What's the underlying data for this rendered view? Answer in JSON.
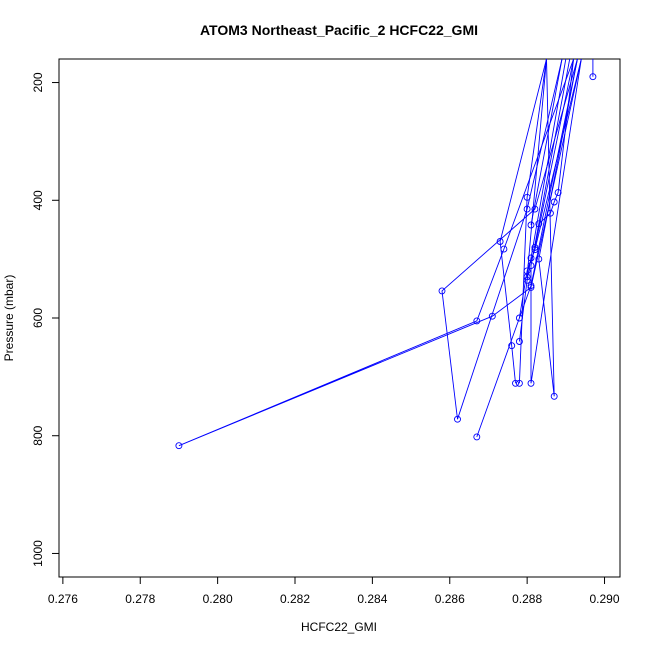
{
  "chart_data": {
    "type": "line",
    "title": "ATOM3 Northeast_Pacific_2 HCFC22_GMI",
    "xlabel": "HCFC22_GMI",
    "ylabel": "Pressure (mbar)",
    "xlim": [
      0.2759,
      0.2904
    ],
    "ylim": [
      1040,
      160
    ],
    "y_reversed": true,
    "grid": false,
    "legend": "none",
    "color": "#0000ff",
    "x_ticks": [
      "0.276",
      "0.278",
      "0.280",
      "0.282",
      "0.284",
      "0.286",
      "0.288",
      "0.290"
    ],
    "y_ticks": [
      "200",
      "400",
      "600",
      "800",
      "1000"
    ],
    "x_tick_values": [
      0.276,
      0.278,
      0.28,
      0.282,
      0.284,
      0.286,
      0.288,
      0.29
    ],
    "y_tick_values": [
      200,
      400,
      600,
      800,
      1000
    ],
    "series": [
      {
        "values": [
          [
            0.2885,
            160
          ],
          [
            0.2873,
            470
          ],
          [
            0.2876,
            647
          ],
          [
            0.2877,
            711
          ]
        ]
      },
      {
        "values": [
          [
            0.2885,
            160
          ],
          [
            0.288,
            395
          ],
          [
            0.2878,
            711
          ]
        ]
      },
      {
        "values": [
          [
            0.2893,
            160
          ],
          [
            0.2882,
            415
          ],
          [
            0.2858,
            554
          ],
          [
            0.2862,
            772
          ],
          [
            0.288,
            415
          ],
          [
            0.2889,
            160
          ]
        ]
      },
      {
        "values": [
          [
            0.2893,
            160
          ],
          [
            0.2883,
            500
          ],
          [
            0.2887,
            733
          ],
          [
            0.2885,
            160
          ]
        ]
      },
      {
        "values": [
          [
            0.2892,
            160
          ],
          [
            0.2874,
            483
          ],
          [
            0.2867,
            605
          ],
          [
            0.279,
            817
          ],
          [
            0.2871,
            597
          ],
          [
            0.2881,
            548
          ],
          [
            0.2894,
            160
          ]
        ]
      },
      {
        "values": [
          [
            0.2891,
            160
          ],
          [
            0.2881,
            511
          ],
          [
            0.2881,
            711
          ],
          [
            0.2894,
            160
          ]
        ]
      },
      {
        "values": [
          [
            0.2893,
            160
          ],
          [
            0.2881,
            545
          ],
          [
            0.2867,
            802
          ]
        ]
      },
      {
        "values": [
          [
            0.2892,
            160
          ],
          [
            0.2888,
            387
          ],
          [
            0.2887,
            403
          ],
          [
            0.2886,
            422
          ],
          [
            0.2883,
            440
          ]
        ]
      },
      {
        "values": [
          [
            0.289,
            160
          ],
          [
            0.2881,
            498
          ],
          [
            0.288,
            536
          ],
          [
            0.2878,
            640
          ]
        ]
      },
      {
        "values": [
          [
            0.2894,
            160
          ],
          [
            0.2882,
            484
          ],
          [
            0.288,
            520
          ],
          [
            0.2878,
            600
          ]
        ]
      },
      {
        "values": [
          [
            0.2892,
            160
          ],
          [
            0.2882,
            480
          ]
        ]
      },
      {
        "values": [
          [
            0.2897,
            160
          ],
          [
            0.2897,
            190
          ]
        ]
      },
      {
        "values": [
          [
            0.2885,
            160
          ],
          [
            0.288,
            530
          ]
        ]
      },
      {
        "values": [
          [
            0.2889,
            160
          ],
          [
            0.2881,
            442
          ]
        ]
      }
    ]
  }
}
